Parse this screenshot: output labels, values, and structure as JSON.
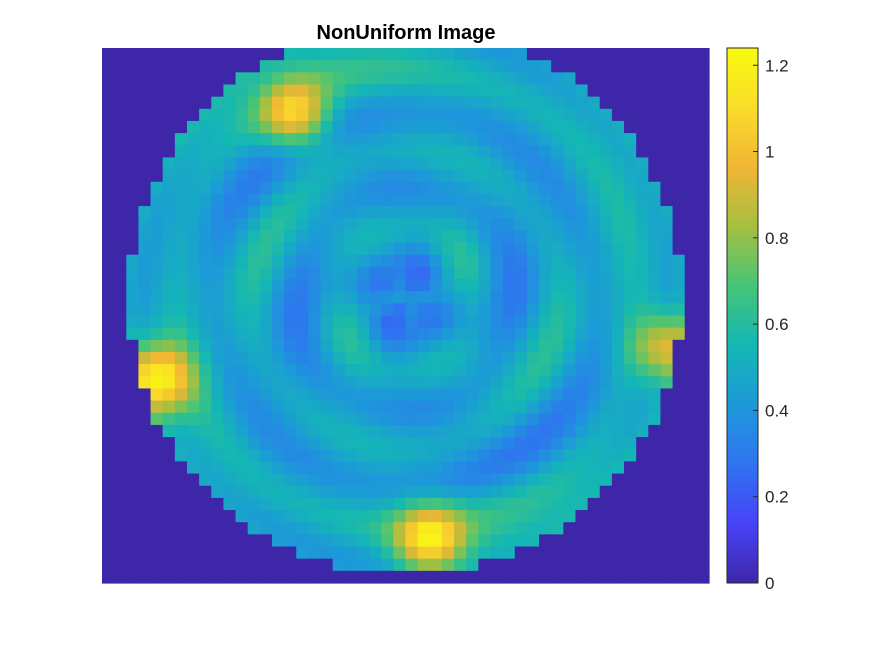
{
  "chart_data": {
    "type": "heatmap",
    "title": "NonUniform Image",
    "xlabel": "",
    "ylabel": "",
    "image_axes_visible": false,
    "grid_size": [
      50,
      44
    ],
    "colormap": "parula",
    "colormap_stops": [
      "#3e26a8",
      "#4743f9",
      "#2f74f0",
      "#1d99d9",
      "#14b7b4",
      "#46c578",
      "#a6bf3f",
      "#f1b634",
      "#f9dc2a",
      "#f9fb0e"
    ],
    "clim": [
      0,
      1.24
    ],
    "colorbar": {
      "location": "right",
      "ticks": [
        0,
        0.2,
        0.4,
        0.6,
        0.8,
        1,
        1.2
      ],
      "tick_labels": [
        "0",
        "0.2",
        "0.4",
        "0.6",
        "0.8",
        "1",
        "1.2"
      ]
    },
    "description_of_values": {
      "outside_disk": 0,
      "disk_center": [
        0.5,
        0.47
      ],
      "disk_radius_fraction": 0.455,
      "background_level": 0.45,
      "hotspots": [
        {
          "cx": 0.32,
          "cy": 0.13,
          "peak": 1.1
        },
        {
          "cx": 0.09,
          "cy": 0.62,
          "peak": 1.24
        },
        {
          "cx": 0.54,
          "cy": 0.92,
          "peak": 1.12
        },
        {
          "cx": 0.93,
          "cy": 0.56,
          "peak": 1.0
        }
      ]
    }
  }
}
